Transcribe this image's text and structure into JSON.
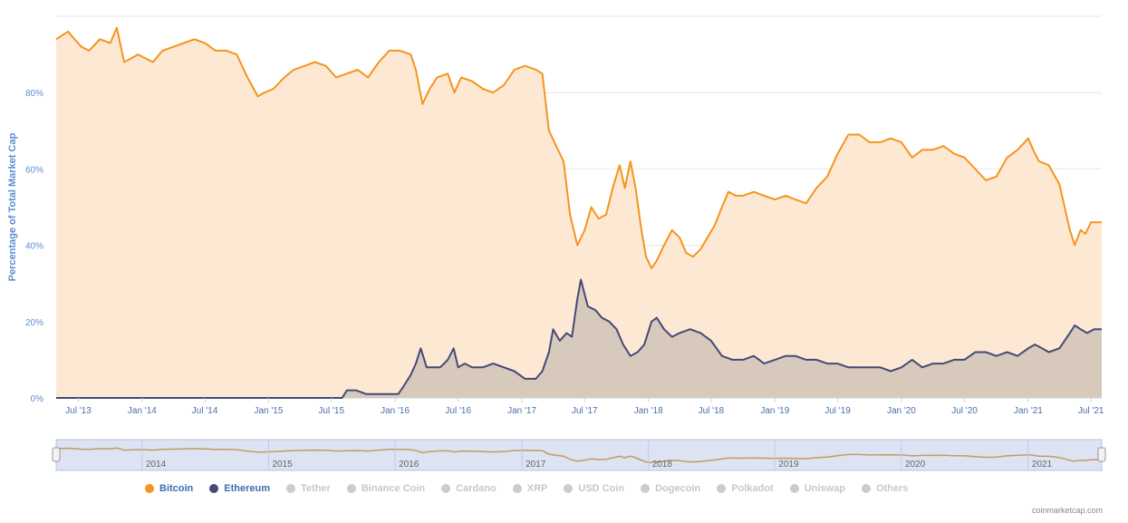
{
  "chart_data": {
    "type": "area",
    "ylabel": "Percentage of Total Market Cap",
    "y_ticks": [
      "0%",
      "20%",
      "40%",
      "60%",
      "80%"
    ],
    "ylim": [
      0,
      100
    ],
    "x_tick_labels": [
      "Jul '13",
      "Jan '14",
      "Jul '14",
      "Jan '15",
      "Jul '15",
      "Jan '16",
      "Jul '16",
      "Jan '17",
      "Jul '17",
      "Jan '18",
      "Jul '18",
      "Jan '19",
      "Jul '19",
      "Jan '20",
      "Jul '20",
      "Jan '21",
      "Jul '21"
    ],
    "navigator_labels": [
      "2014",
      "2015",
      "2016",
      "2017",
      "2018",
      "2019",
      "2020",
      "2021"
    ],
    "grid": true,
    "legend_position": "bottom",
    "series": [
      {
        "name": "Bitcoin",
        "color": "#f5941e",
        "fill": "#fde9d3",
        "points": [
          [
            "2013-04-28",
            94
          ],
          [
            "2013-05-15",
            95
          ],
          [
            "2013-06-01",
            96
          ],
          [
            "2013-06-20",
            94
          ],
          [
            "2013-07-10",
            92
          ],
          [
            "2013-08-01",
            91
          ],
          [
            "2013-09-01",
            94
          ],
          [
            "2013-10-01",
            93
          ],
          [
            "2013-10-20",
            97
          ],
          [
            "2013-11-10",
            88
          ],
          [
            "2013-12-01",
            89
          ],
          [
            "2013-12-20",
            90
          ],
          [
            "2014-01-10",
            89
          ],
          [
            "2014-02-01",
            88
          ],
          [
            "2014-03-01",
            91
          ],
          [
            "2014-04-01",
            92
          ],
          [
            "2014-05-01",
            93
          ],
          [
            "2014-06-01",
            94
          ],
          [
            "2014-07-01",
            93
          ],
          [
            "2014-08-01",
            91
          ],
          [
            "2014-09-01",
            91
          ],
          [
            "2014-10-01",
            90
          ],
          [
            "2014-11-01",
            84
          ],
          [
            "2014-12-01",
            79
          ],
          [
            "2014-12-20",
            80
          ],
          [
            "2015-01-15",
            81
          ],
          [
            "2015-02-15",
            84
          ],
          [
            "2015-03-15",
            86
          ],
          [
            "2015-04-15",
            87
          ],
          [
            "2015-05-15",
            88
          ],
          [
            "2015-06-15",
            87
          ],
          [
            "2015-07-15",
            84
          ],
          [
            "2015-08-15",
            85
          ],
          [
            "2015-09-15",
            86
          ],
          [
            "2015-10-15",
            84
          ],
          [
            "2015-11-15",
            88
          ],
          [
            "2015-12-15",
            91
          ],
          [
            "2016-01-15",
            91
          ],
          [
            "2016-02-15",
            90
          ],
          [
            "2016-03-01",
            86
          ],
          [
            "2016-03-20",
            77
          ],
          [
            "2016-04-10",
            81
          ],
          [
            "2016-05-01",
            84
          ],
          [
            "2016-06-01",
            85
          ],
          [
            "2016-06-20",
            80
          ],
          [
            "2016-07-10",
            84
          ],
          [
            "2016-08-10",
            83
          ],
          [
            "2016-09-10",
            81
          ],
          [
            "2016-10-10",
            80
          ],
          [
            "2016-11-10",
            82
          ],
          [
            "2016-12-10",
            86
          ],
          [
            "2017-01-10",
            87
          ],
          [
            "2017-02-10",
            86
          ],
          [
            "2017-03-01",
            85
          ],
          [
            "2017-03-20",
            70
          ],
          [
            "2017-04-10",
            66
          ],
          [
            "2017-05-01",
            62
          ],
          [
            "2017-05-20",
            48
          ],
          [
            "2017-06-10",
            40
          ],
          [
            "2017-07-01",
            44
          ],
          [
            "2017-07-20",
            50
          ],
          [
            "2017-08-10",
            47
          ],
          [
            "2017-09-01",
            48
          ],
          [
            "2017-09-20",
            55
          ],
          [
            "2017-10-10",
            61
          ],
          [
            "2017-10-25",
            55
          ],
          [
            "2017-11-10",
            62
          ],
          [
            "2017-11-25",
            55
          ],
          [
            "2017-12-10",
            45
          ],
          [
            "2017-12-25",
            37
          ],
          [
            "2018-01-10",
            34
          ],
          [
            "2018-01-25",
            36
          ],
          [
            "2018-02-15",
            40
          ],
          [
            "2018-03-10",
            44
          ],
          [
            "2018-04-01",
            42
          ],
          [
            "2018-04-20",
            38
          ],
          [
            "2018-05-10",
            37
          ],
          [
            "2018-06-01",
            39
          ],
          [
            "2018-06-20",
            42
          ],
          [
            "2018-07-10",
            45
          ],
          [
            "2018-08-01",
            50
          ],
          [
            "2018-08-20",
            54
          ],
          [
            "2018-09-10",
            53
          ],
          [
            "2018-10-01",
            53
          ],
          [
            "2018-11-01",
            54
          ],
          [
            "2018-12-01",
            53
          ],
          [
            "2019-01-01",
            52
          ],
          [
            "2019-02-01",
            53
          ],
          [
            "2019-03-01",
            52
          ],
          [
            "2019-04-01",
            51
          ],
          [
            "2019-05-01",
            55
          ],
          [
            "2019-06-01",
            58
          ],
          [
            "2019-07-01",
            64
          ],
          [
            "2019-08-01",
            69
          ],
          [
            "2019-09-01",
            69
          ],
          [
            "2019-10-01",
            67
          ],
          [
            "2019-11-01",
            67
          ],
          [
            "2019-12-01",
            68
          ],
          [
            "2020-01-01",
            67
          ],
          [
            "2020-02-01",
            63
          ],
          [
            "2020-03-01",
            65
          ],
          [
            "2020-04-01",
            65
          ],
          [
            "2020-05-01",
            66
          ],
          [
            "2020-06-01",
            64
          ],
          [
            "2020-07-01",
            63
          ],
          [
            "2020-08-01",
            60
          ],
          [
            "2020-09-01",
            57
          ],
          [
            "2020-10-01",
            58
          ],
          [
            "2020-11-01",
            63
          ],
          [
            "2020-12-01",
            65
          ],
          [
            "2021-01-01",
            68
          ],
          [
            "2021-01-15",
            65
          ],
          [
            "2021-02-01",
            62
          ],
          [
            "2021-03-01",
            61
          ],
          [
            "2021-04-01",
            56
          ],
          [
            "2021-05-01",
            44
          ],
          [
            "2021-05-15",
            40
          ],
          [
            "2021-06-01",
            44
          ],
          [
            "2021-06-15",
            43
          ],
          [
            "2021-07-01",
            46
          ],
          [
            "2021-07-15",
            46
          ],
          [
            "2021-08-01",
            46
          ]
        ]
      },
      {
        "name": "Ethereum",
        "color": "#454a75",
        "fill": "#d8c9bd",
        "points": [
          [
            "2013-04-28",
            0
          ],
          [
            "2015-08-01",
            0
          ],
          [
            "2015-08-15",
            2
          ],
          [
            "2015-09-10",
            2
          ],
          [
            "2015-10-10",
            1
          ],
          [
            "2015-12-01",
            1
          ],
          [
            "2016-01-10",
            1
          ],
          [
            "2016-01-25",
            3
          ],
          [
            "2016-02-15",
            6
          ],
          [
            "2016-03-01",
            9
          ],
          [
            "2016-03-15",
            13
          ],
          [
            "2016-04-01",
            8
          ],
          [
            "2016-04-20",
            8
          ],
          [
            "2016-05-10",
            8
          ],
          [
            "2016-06-01",
            10
          ],
          [
            "2016-06-18",
            13
          ],
          [
            "2016-07-01",
            8
          ],
          [
            "2016-07-20",
            9
          ],
          [
            "2016-08-10",
            8
          ],
          [
            "2016-09-10",
            8
          ],
          [
            "2016-10-10",
            9
          ],
          [
            "2016-11-10",
            8
          ],
          [
            "2016-12-10",
            7
          ],
          [
            "2017-01-10",
            5
          ],
          [
            "2017-02-10",
            5
          ],
          [
            "2017-03-01",
            7
          ],
          [
            "2017-03-20",
            12
          ],
          [
            "2017-04-01",
            18
          ],
          [
            "2017-04-20",
            15
          ],
          [
            "2017-05-10",
            17
          ],
          [
            "2017-05-25",
            16
          ],
          [
            "2017-06-10",
            26
          ],
          [
            "2017-06-20",
            31
          ],
          [
            "2017-07-10",
            24
          ],
          [
            "2017-08-01",
            23
          ],
          [
            "2017-08-20",
            21
          ],
          [
            "2017-09-10",
            20
          ],
          [
            "2017-10-01",
            18
          ],
          [
            "2017-10-20",
            14
          ],
          [
            "2017-11-10",
            11
          ],
          [
            "2017-12-01",
            12
          ],
          [
            "2017-12-20",
            14
          ],
          [
            "2018-01-10",
            20
          ],
          [
            "2018-01-25",
            21
          ],
          [
            "2018-02-15",
            18
          ],
          [
            "2018-03-10",
            16
          ],
          [
            "2018-04-01",
            17
          ],
          [
            "2018-05-01",
            18
          ],
          [
            "2018-06-01",
            17
          ],
          [
            "2018-07-01",
            15
          ],
          [
            "2018-08-01",
            11
          ],
          [
            "2018-09-01",
            10
          ],
          [
            "2018-10-01",
            10
          ],
          [
            "2018-11-01",
            11
          ],
          [
            "2018-12-01",
            9
          ],
          [
            "2019-01-01",
            10
          ],
          [
            "2019-02-01",
            11
          ],
          [
            "2019-03-01",
            11
          ],
          [
            "2019-04-01",
            10
          ],
          [
            "2019-05-01",
            10
          ],
          [
            "2019-06-01",
            9
          ],
          [
            "2019-07-01",
            9
          ],
          [
            "2019-08-01",
            8
          ],
          [
            "2019-09-01",
            8
          ],
          [
            "2019-10-01",
            8
          ],
          [
            "2019-11-01",
            8
          ],
          [
            "2019-12-01",
            7
          ],
          [
            "2020-01-01",
            8
          ],
          [
            "2020-02-01",
            10
          ],
          [
            "2020-03-01",
            8
          ],
          [
            "2020-04-01",
            9
          ],
          [
            "2020-05-01",
            9
          ],
          [
            "2020-06-01",
            10
          ],
          [
            "2020-07-01",
            10
          ],
          [
            "2020-08-01",
            12
          ],
          [
            "2020-09-01",
            12
          ],
          [
            "2020-10-01",
            11
          ],
          [
            "2020-11-01",
            12
          ],
          [
            "2020-12-01",
            11
          ],
          [
            "2021-01-01",
            13
          ],
          [
            "2021-01-20",
            14
          ],
          [
            "2021-02-10",
            13
          ],
          [
            "2021-03-01",
            12
          ],
          [
            "2021-04-01",
            13
          ],
          [
            "2021-05-01",
            17
          ],
          [
            "2021-05-15",
            19
          ],
          [
            "2021-06-01",
            18
          ],
          [
            "2021-06-20",
            17
          ],
          [
            "2021-07-10",
            18
          ],
          [
            "2021-08-01",
            18
          ]
        ]
      }
    ]
  },
  "legend": [
    {
      "label": "Bitcoin",
      "color": "#f5941e",
      "active": true
    },
    {
      "label": "Ethereum",
      "color": "#454a75",
      "active": true
    },
    {
      "label": "Tether",
      "color": "#cccccc",
      "active": false
    },
    {
      "label": "Binance Coin",
      "color": "#cccccc",
      "active": false
    },
    {
      "label": "Cardano",
      "color": "#cccccc",
      "active": false
    },
    {
      "label": "XRP",
      "color": "#cccccc",
      "active": false
    },
    {
      "label": "USD Coin",
      "color": "#cccccc",
      "active": false
    },
    {
      "label": "Dogecoin",
      "color": "#cccccc",
      "active": false
    },
    {
      "label": "Polkadot",
      "color": "#cccccc",
      "active": false
    },
    {
      "label": "Uniswap",
      "color": "#cccccc",
      "active": false
    },
    {
      "label": "Others",
      "color": "#cccccc",
      "active": false
    }
  ],
  "credits": "coinmarketcap.com"
}
